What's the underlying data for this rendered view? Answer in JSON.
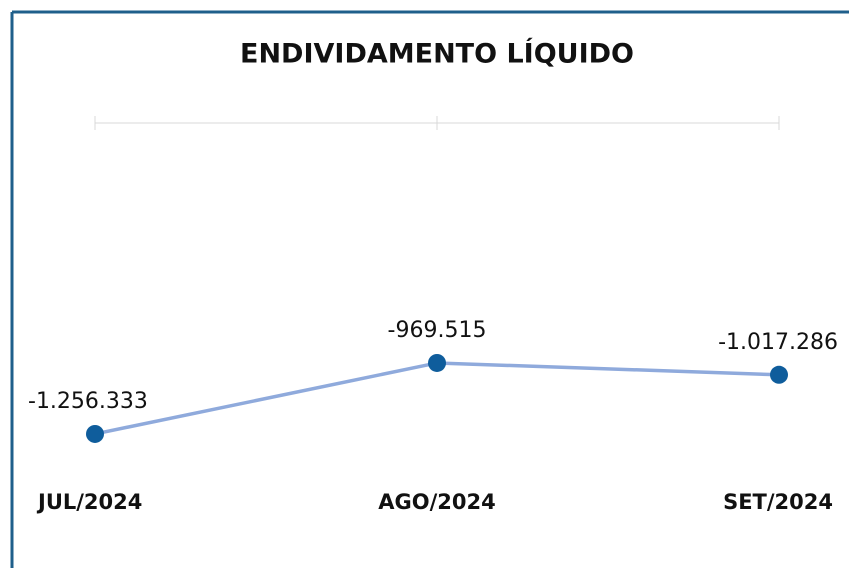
{
  "chart_data": {
    "type": "line",
    "title": "ENDIVIDAMENTO LÍQUIDO",
    "categories": [
      "JUL/2024",
      "AGO/2024",
      "SET/2024"
    ],
    "series": [
      {
        "name": "Endividamento Líquido",
        "color": "#8faadc",
        "marker_color": "#0f5d9c",
        "values": [
          -1256333,
          -969515,
          -1017286
        ],
        "value_labels": [
          "-1.256.333",
          "-969.515",
          "-1.017.286"
        ]
      }
    ],
    "ylim": [
      -1400000,
      0
    ]
  }
}
